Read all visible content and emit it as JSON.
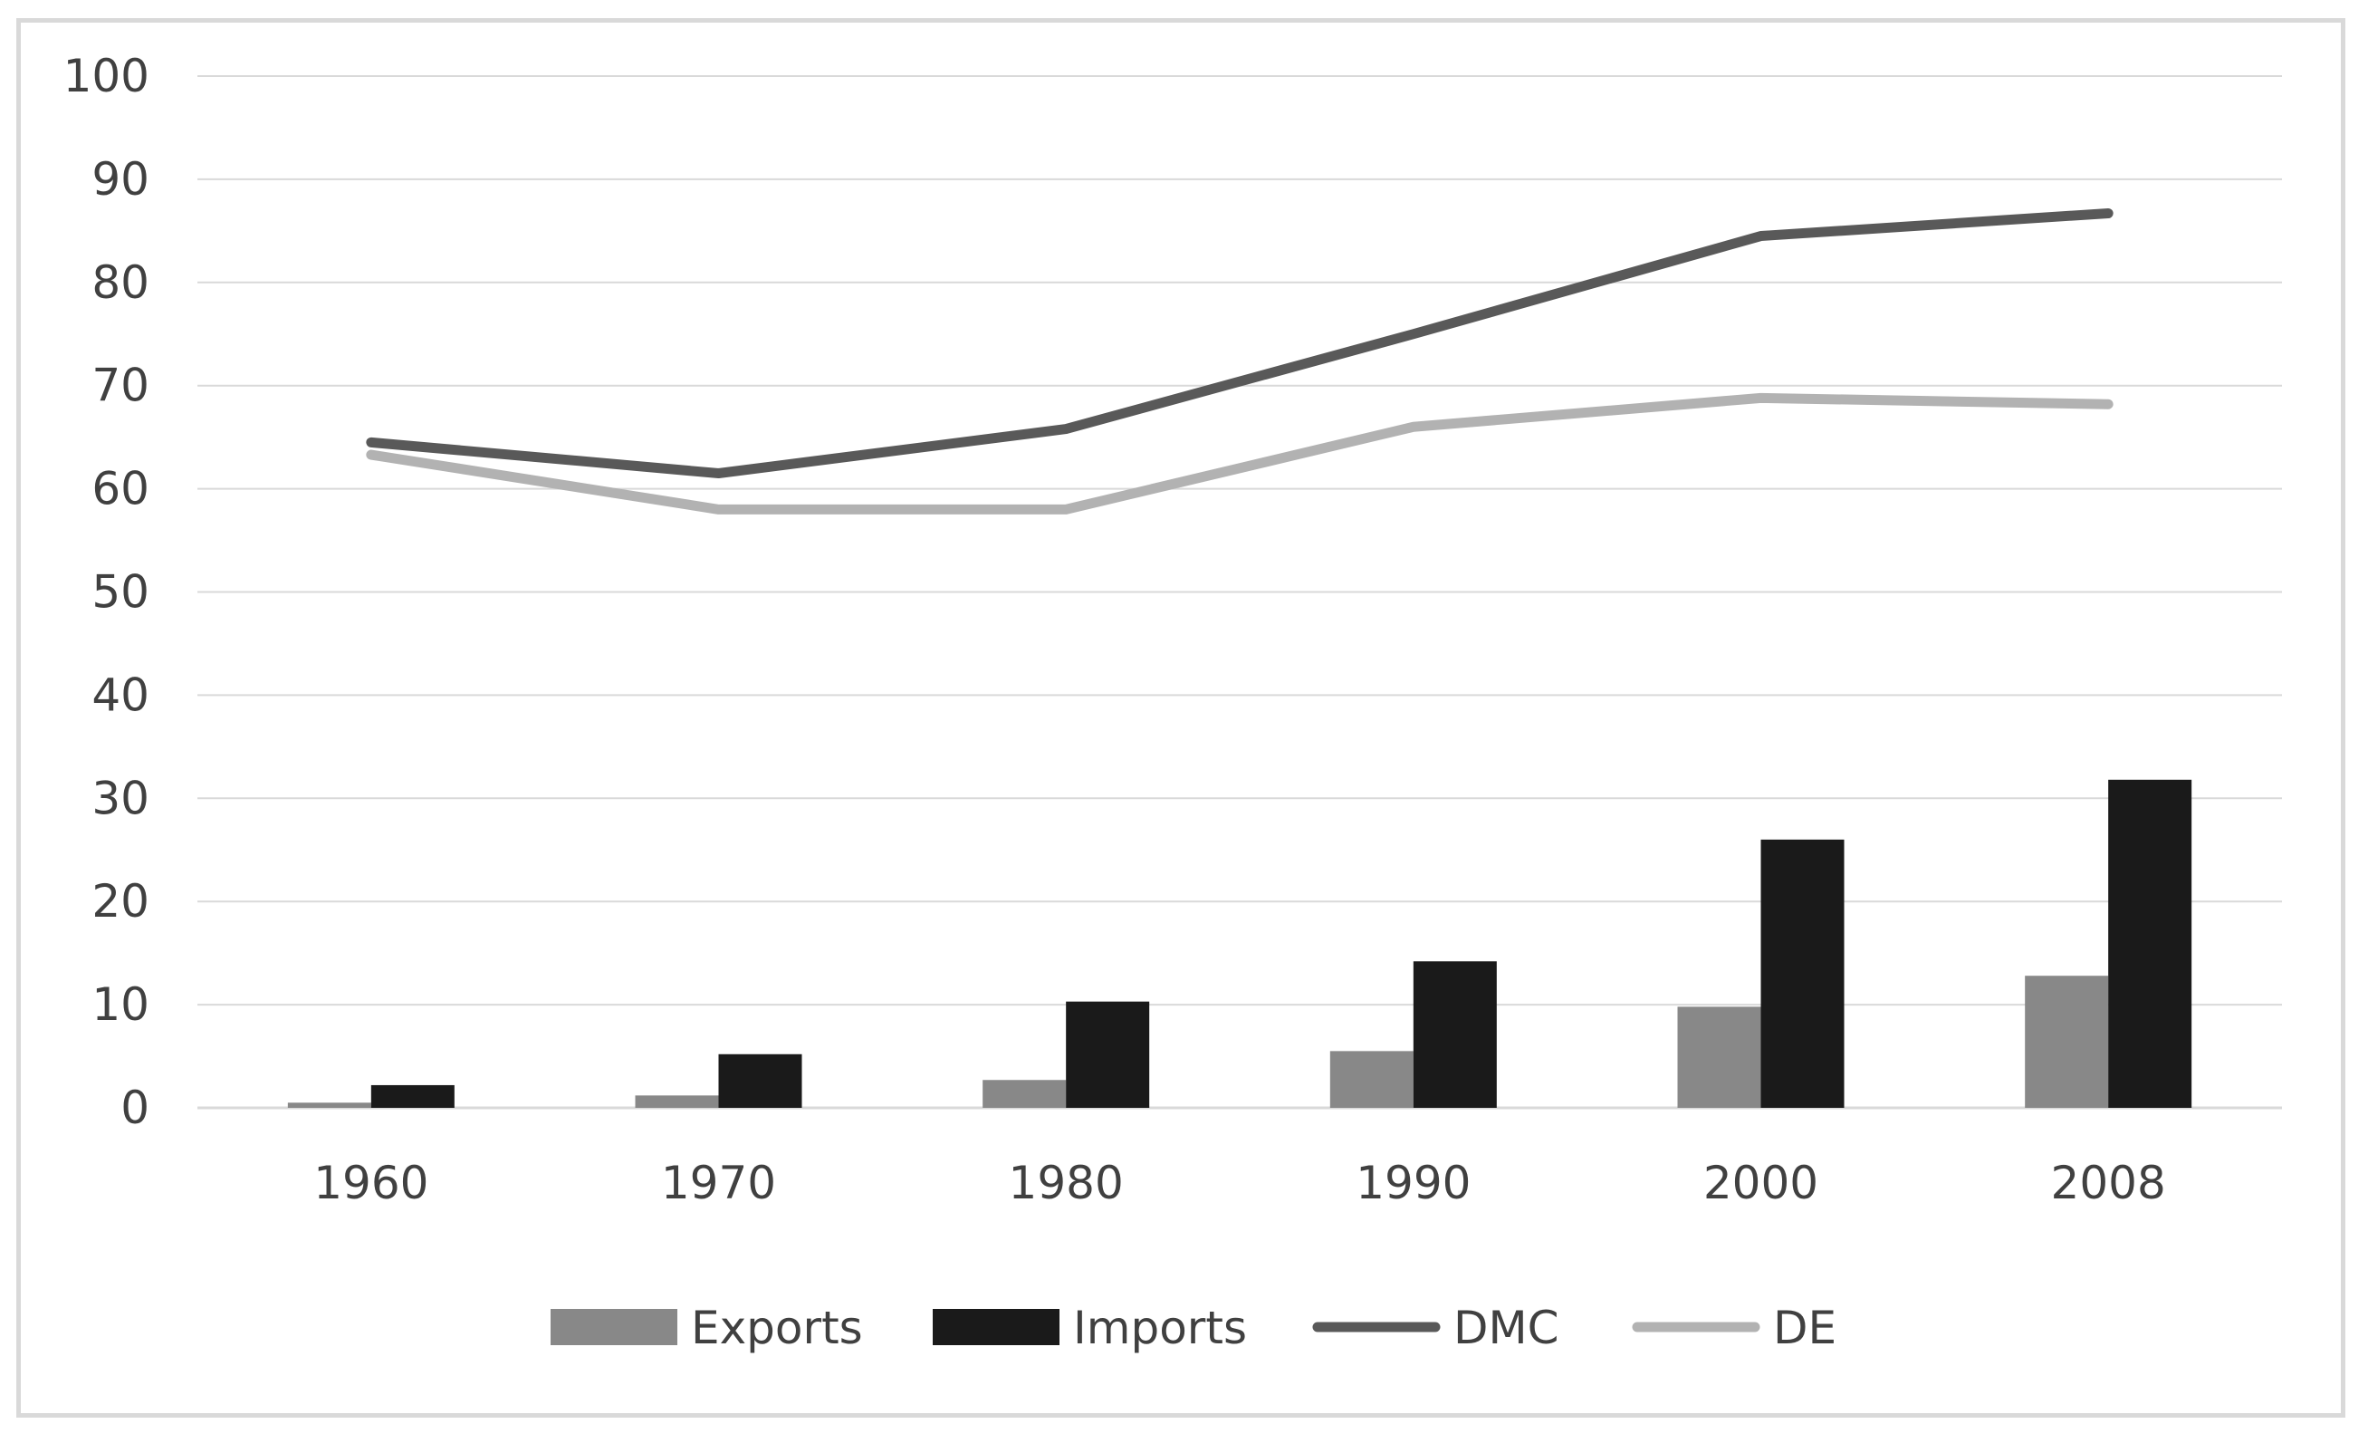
{
  "chart_data": {
    "type": "bar",
    "title": "",
    "xlabel": "",
    "ylabel": "",
    "categories": [
      "1960",
      "1970",
      "1980",
      "1990",
      "2000",
      "2008"
    ],
    "ylim": [
      0,
      100
    ],
    "yticks": [
      "0",
      "10",
      "20",
      "30",
      "40",
      "50",
      "60",
      "70",
      "80",
      "90",
      "100"
    ],
    "grid": true,
    "legend_position": "bottom",
    "series": [
      {
        "name": "Exports",
        "kind": "bar",
        "color": "#888888",
        "values": [
          0.5,
          1.2,
          2.7,
          5.5,
          9.8,
          12.8
        ]
      },
      {
        "name": "Imports",
        "kind": "bar",
        "color": "#1a1a1a",
        "values": [
          2.2,
          5.2,
          10.3,
          14.2,
          26.0,
          31.8
        ]
      },
      {
        "name": "DMC",
        "kind": "line",
        "color": "#595959",
        "values": [
          64.5,
          61.5,
          65.8,
          75.0,
          84.5,
          86.7
        ]
      },
      {
        "name": "DE",
        "kind": "line",
        "color": "#b2b2b2",
        "values": [
          63.3,
          58.0,
          58.0,
          66.0,
          68.8,
          68.2
        ]
      }
    ]
  }
}
